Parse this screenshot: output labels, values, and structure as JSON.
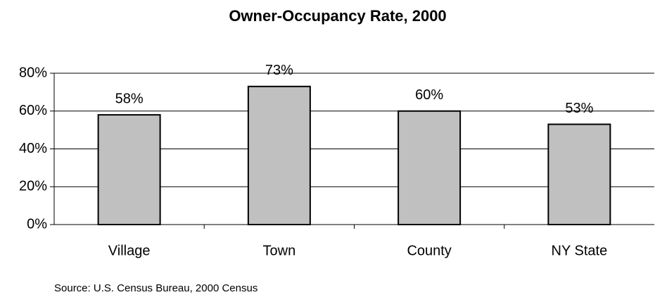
{
  "chart_data": {
    "type": "bar",
    "title": "Owner-Occupancy Rate, 2000",
    "categories": [
      "Village",
      "Town",
      "County",
      "NY State"
    ],
    "values": [
      58,
      73,
      60,
      53
    ],
    "value_labels": [
      "58%",
      "73%",
      "60%",
      "53%"
    ],
    "color": "#c0c0c0",
    "ylim": [
      0,
      80
    ],
    "yticks": [
      {
        "value": 0,
        "label": "0%"
      },
      {
        "value": 20,
        "label": "20%"
      },
      {
        "value": 40,
        "label": "40%"
      },
      {
        "value": 60,
        "label": "60%"
      },
      {
        "value": 80,
        "label": "80%"
      }
    ],
    "grid": true,
    "source": "Source: U.S. Census Bureau, 2000 Census"
  }
}
